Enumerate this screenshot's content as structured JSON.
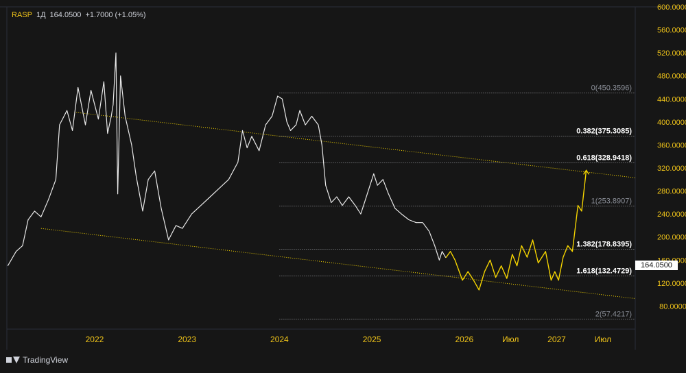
{
  "header": {
    "symbol": "RASP",
    "interval": "1Д",
    "last": "164.0500",
    "change": "+1.7000 (+1.05%)"
  },
  "brand": {
    "name": "TradingView"
  },
  "colors": {
    "background": "#161616",
    "price_line": "#e9e9e9",
    "projection": "#f5d400",
    "fib": "#d1d4dc",
    "axis_text": "#f0c419"
  },
  "price_tag": "164.0500",
  "chart_data": {
    "type": "line",
    "title": "",
    "xlabel": "",
    "ylabel": "",
    "ylim": [
      40,
      600
    ],
    "y_ticks": [
      "80.0000",
      "120.0000",
      "160.0000",
      "200.0000",
      "240.0000",
      "280.0000",
      "320.0000",
      "360.0000",
      "400.0000",
      "440.0000",
      "480.0000",
      "520.0000",
      "560.0000",
      "600.0000"
    ],
    "y_tick_values": [
      80,
      120,
      160,
      200,
      240,
      280,
      320,
      360,
      400,
      440,
      480,
      520,
      560,
      600
    ],
    "x_ticks": [
      {
        "label": "2022",
        "t": 2022.0
      },
      {
        "label": "2023",
        "t": 2023.0
      },
      {
        "label": "2024",
        "t": 2024.0
      },
      {
        "label": "2025",
        "t": 2025.0
      },
      {
        "label": "2026",
        "t": 2026.0
      },
      {
        "label": "Июл",
        "t": 2026.5
      },
      {
        "label": "2027",
        "t": 2027.0
      },
      {
        "label": "Июл",
        "t": 2027.5
      }
    ],
    "xlim": [
      2021.05,
      2027.85
    ],
    "series": [
      {
        "color": "#e9e9e9",
        "points": [
          [
            2021.06,
            150
          ],
          [
            2021.15,
            175
          ],
          [
            2021.22,
            185
          ],
          [
            2021.28,
            230
          ],
          [
            2021.35,
            245
          ],
          [
            2021.42,
            235
          ],
          [
            2021.5,
            265
          ],
          [
            2021.58,
            300
          ],
          [
            2021.62,
            395
          ],
          [
            2021.7,
            420
          ],
          [
            2021.76,
            385
          ],
          [
            2021.82,
            460
          ],
          [
            2021.9,
            395
          ],
          [
            2021.96,
            455
          ],
          [
            2022.04,
            405
          ],
          [
            2022.1,
            470
          ],
          [
            2022.14,
            380
          ],
          [
            2022.18,
            410
          ],
          [
            2022.2,
            430
          ],
          [
            2022.23,
            520
          ],
          [
            2022.25,
            275
          ],
          [
            2022.28,
            480
          ],
          [
            2022.33,
            410
          ],
          [
            2022.4,
            360
          ],
          [
            2022.45,
            305
          ],
          [
            2022.52,
            245
          ],
          [
            2022.58,
            300
          ],
          [
            2022.65,
            315
          ],
          [
            2022.72,
            250
          ],
          [
            2022.8,
            195
          ],
          [
            2022.88,
            220
          ],
          [
            2022.95,
            215
          ],
          [
            2023.05,
            240
          ],
          [
            2023.15,
            255
          ],
          [
            2023.25,
            270
          ],
          [
            2023.35,
            285
          ],
          [
            2023.45,
            300
          ],
          [
            2023.55,
            330
          ],
          [
            2023.6,
            385
          ],
          [
            2023.65,
            355
          ],
          [
            2023.7,
            375
          ],
          [
            2023.78,
            350
          ],
          [
            2023.85,
            395
          ],
          [
            2023.92,
            410
          ],
          [
            2023.98,
            445
          ],
          [
            2024.03,
            440
          ],
          [
            2024.08,
            400
          ],
          [
            2024.12,
            385
          ],
          [
            2024.18,
            395
          ],
          [
            2024.22,
            420
          ],
          [
            2024.28,
            395
          ],
          [
            2024.35,
            410
          ],
          [
            2024.42,
            395
          ],
          [
            2024.46,
            360
          ],
          [
            2024.5,
            290
          ],
          [
            2024.56,
            260
          ],
          [
            2024.62,
            270
          ],
          [
            2024.68,
            255
          ],
          [
            2024.75,
            270
          ],
          [
            2024.82,
            255
          ],
          [
            2024.88,
            240
          ],
          [
            2024.93,
            265
          ],
          [
            2024.98,
            290
          ],
          [
            2025.02,
            310
          ],
          [
            2025.06,
            290
          ],
          [
            2025.12,
            300
          ],
          [
            2025.18,
            275
          ],
          [
            2025.25,
            250
          ],
          [
            2025.32,
            240
          ],
          [
            2025.4,
            230
          ],
          [
            2025.48,
            225
          ],
          [
            2025.55,
            225
          ],
          [
            2025.62,
            210
          ],
          [
            2025.68,
            185
          ],
          [
            2025.73,
            160
          ],
          [
            2025.76,
            175
          ],
          [
            2025.8,
            164
          ]
        ]
      },
      {
        "color": "#f5d400",
        "points": [
          [
            2025.8,
            164
          ],
          [
            2025.85,
            175
          ],
          [
            2025.9,
            160
          ],
          [
            2025.98,
            125
          ],
          [
            2026.04,
            140
          ],
          [
            2026.1,
            125
          ],
          [
            2026.16,
            108
          ],
          [
            2026.22,
            140
          ],
          [
            2026.28,
            160
          ],
          [
            2026.34,
            130
          ],
          [
            2026.4,
            150
          ],
          [
            2026.46,
            128
          ],
          [
            2026.52,
            170
          ],
          [
            2026.57,
            150
          ],
          [
            2026.62,
            185
          ],
          [
            2026.68,
            165
          ],
          [
            2026.74,
            195
          ],
          [
            2026.8,
            155
          ],
          [
            2026.88,
            175
          ],
          [
            2026.94,
            125
          ],
          [
            2026.98,
            140
          ],
          [
            2027.02,
            125
          ],
          [
            2027.07,
            165
          ],
          [
            2027.12,
            185
          ],
          [
            2027.17,
            175
          ],
          [
            2027.23,
            255
          ],
          [
            2027.27,
            245
          ],
          [
            2027.32,
            316
          ]
        ],
        "arrow": true
      }
    ],
    "trendlines": [
      {
        "color": "#f5d400",
        "from": [
          2021.78,
          417
        ],
        "to": [
          2027.85,
          303
        ]
      },
      {
        "color": "#f5d400",
        "from": [
          2021.42,
          215
        ],
        "to": [
          2027.85,
          93
        ]
      }
    ],
    "fib_levels": [
      {
        "label": "0(450.3596)",
        "value": 450.3596,
        "bold": false
      },
      {
        "label": "0.382(375.3085)",
        "value": 375.3085,
        "bold": true
      },
      {
        "label": "0.618(328.9418)",
        "value": 328.9418,
        "bold": true
      },
      {
        "label": "1(253.8907)",
        "value": 253.8907,
        "bold": false
      },
      {
        "label": "1.382(178.8395)",
        "value": 178.8395,
        "bold": true
      },
      {
        "label": "1.618(132.4729)",
        "value": 132.4729,
        "bold": true
      },
      {
        "label": "2(57.4217)",
        "value": 57.4217,
        "bold": false
      }
    ],
    "fib_start_t": 2024.0
  }
}
